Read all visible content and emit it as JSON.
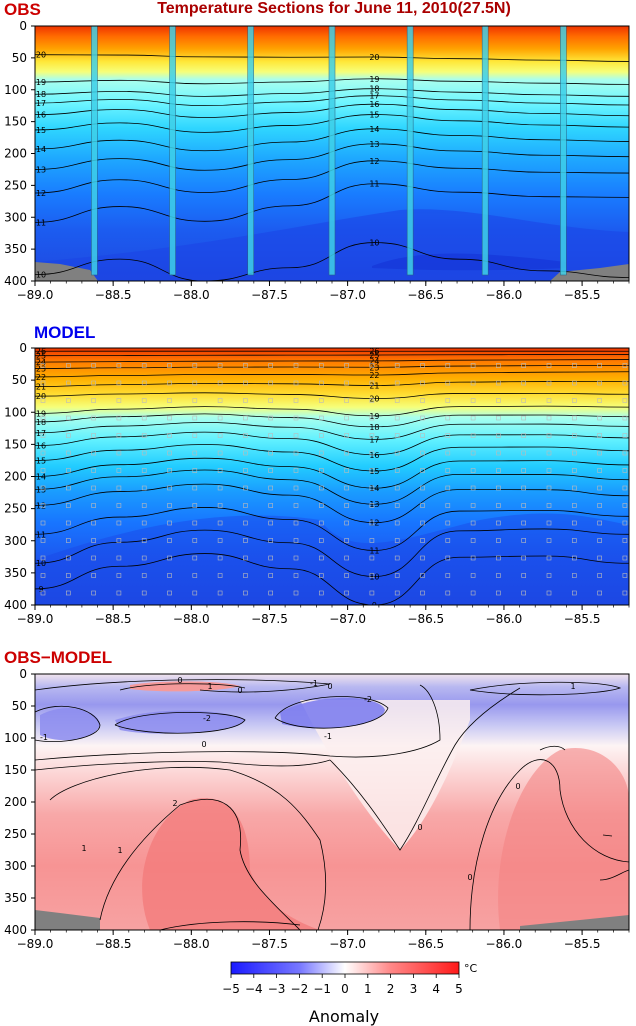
{
  "title": "Temperature Sections for June 11, 2010(27.5N)",
  "colors": {
    "obs_label": "#cc0000",
    "model_label": "#0000ee",
    "title": "#aa0000",
    "land": "#808080"
  },
  "colorbar": {
    "ticks": [
      "−5",
      "−4",
      "−3",
      "−2",
      "−1",
      "0",
      "1",
      "2",
      "3",
      "4",
      "5"
    ],
    "unit": "°C",
    "label": "Anomaly"
  },
  "chart_data": [
    {
      "type": "heatmap",
      "title": "OBS",
      "x_unit": "longitude",
      "y_unit": "depth",
      "xlim": [
        -89.0,
        -85.2
      ],
      "ylim": [
        400,
        0
      ],
      "x_ticks": [
        "−89.0",
        "−88.5",
        "−88.0",
        "−87.5",
        "−87.0",
        "−86.5",
        "−86.0",
        "−85.5"
      ],
      "y_ticks": [
        "0",
        "50",
        "100",
        "150",
        "200",
        "250",
        "300",
        "350",
        "400"
      ],
      "stations": [
        -88.62,
        -88.12,
        -87.62,
        -87.1,
        -86.6,
        -86.12,
        -85.62
      ],
      "contours": [
        {
          "level": 20,
          "left": 45,
          "right": 55
        },
        {
          "level": 19,
          "left": 88,
          "right": 90
        },
        {
          "level": 18,
          "left": 107,
          "right": 108
        },
        {
          "level": 17,
          "left": 121,
          "right": 121
        },
        {
          "level": 16,
          "left": 139,
          "right": 137
        },
        {
          "level": 15,
          "left": 163,
          "right": 154
        },
        {
          "level": 14,
          "left": 193,
          "right": 176
        },
        {
          "level": 13,
          "left": 225,
          "right": 199
        },
        {
          "level": 12,
          "left": 262,
          "right": 224
        },
        {
          "level": 11,
          "left": 308,
          "right": 261
        },
        {
          "level": 10,
          "left": 390,
          "right": 383
        }
      ]
    },
    {
      "type": "heatmap",
      "title": "MODEL",
      "x_unit": "longitude",
      "y_unit": "depth",
      "xlim": [
        -89.0,
        -85.2
      ],
      "ylim": [
        400,
        0
      ],
      "x_ticks": [
        "−89.0",
        "−88.5",
        "−88.0",
        "−87.5",
        "−87.0",
        "−86.5",
        "−86.0",
        "−85.5"
      ],
      "y_ticks": [
        "0",
        "50",
        "100",
        "150",
        "200",
        "250",
        "300",
        "350",
        "400"
      ],
      "contours": [
        {
          "level": 26,
          "left": 5,
          "right": 5
        },
        {
          "level": 25,
          "left": 12,
          "right": 10
        },
        {
          "level": 24,
          "left": 22,
          "right": 18
        },
        {
          "level": 23,
          "left": 32,
          "right": 27
        },
        {
          "level": 22,
          "left": 45,
          "right": 37
        },
        {
          "level": 21,
          "left": 60,
          "right": 52
        },
        {
          "level": 20,
          "left": 75,
          "right": 72
        },
        {
          "level": 19,
          "left": 102,
          "right": 92
        },
        {
          "level": 18,
          "left": 115,
          "right": 107
        },
        {
          "level": 17,
          "left": 132,
          "right": 122
        },
        {
          "level": 16,
          "left": 152,
          "right": 140
        },
        {
          "level": 15,
          "left": 175,
          "right": 160
        },
        {
          "level": 14,
          "left": 200,
          "right": 182
        },
        {
          "level": 13,
          "left": 220,
          "right": 205
        },
        {
          "level": 12,
          "left": 245,
          "right": 230
        },
        {
          "level": 11,
          "left": 290,
          "right": 262
        },
        {
          "level": 10,
          "left": 335,
          "right": 290
        },
        {
          "level": 9,
          "left": 375,
          "right": 335
        }
      ]
    },
    {
      "type": "heatmap",
      "title": "OBS−MODEL",
      "x_unit": "longitude",
      "y_unit": "depth",
      "xlim": [
        -89.0,
        -85.2
      ],
      "ylim": [
        400,
        0
      ],
      "value_range": [
        -5,
        5
      ],
      "unit": "°C",
      "x_ticks": [
        "−89.0",
        "−88.5",
        "−88.0",
        "−87.5",
        "−87.0",
        "−86.5",
        "−86.0",
        "−85.5"
      ],
      "y_ticks": [
        "0",
        "50",
        "100",
        "150",
        "200",
        "250",
        "300",
        "350",
        "400"
      ],
      "contour_labels": [
        "0",
        "1",
        "0",
        "-1",
        "0",
        "-2",
        "-2",
        "-1",
        "0",
        "-1",
        "0",
        "1",
        "2",
        "0",
        "1",
        "1",
        "0"
      ]
    }
  ]
}
